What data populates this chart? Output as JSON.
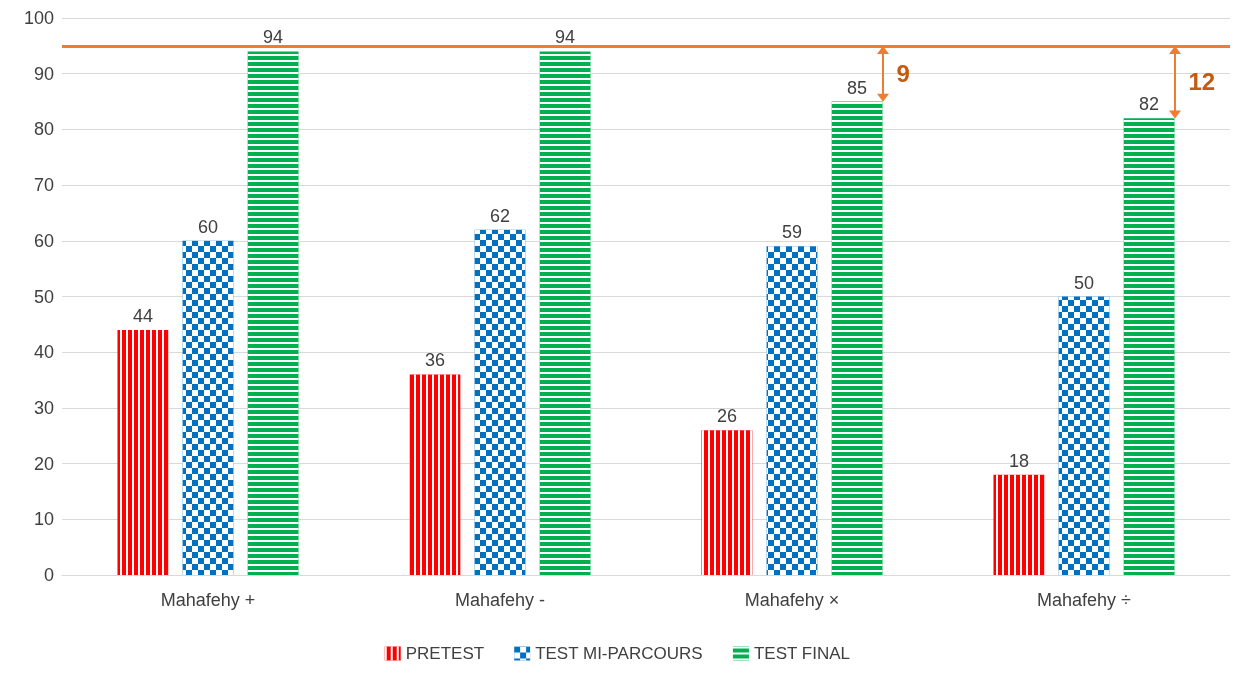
{
  "chart_data": {
    "type": "bar",
    "categories": [
      "Mahafehy +",
      "Mahafehy -",
      "Mahafehy ×",
      "Mahafehy ÷"
    ],
    "series": [
      {
        "name": "PRETEST",
        "color": "#ff0000",
        "values": [
          44,
          36,
          26,
          18
        ]
      },
      {
        "name": "TEST MI-PARCOURS",
        "color": "#0070c0",
        "values": [
          60,
          62,
          59,
          50
        ]
      },
      {
        "name": "TEST FINAL",
        "color": "#00b050",
        "values": [
          94,
          94,
          85,
          82
        ]
      }
    ],
    "ylim": [
      0,
      100
    ],
    "yticks": [
      0,
      10,
      20,
      30,
      40,
      50,
      60,
      70,
      80,
      90,
      100
    ],
    "grid": "y",
    "legend": "bottom",
    "data_labels": true,
    "ref_lines": [
      {
        "axis": "y",
        "value": 95,
        "color": "#ed7d31"
      }
    ],
    "annotations": [
      "9",
      "12"
    ]
  }
}
